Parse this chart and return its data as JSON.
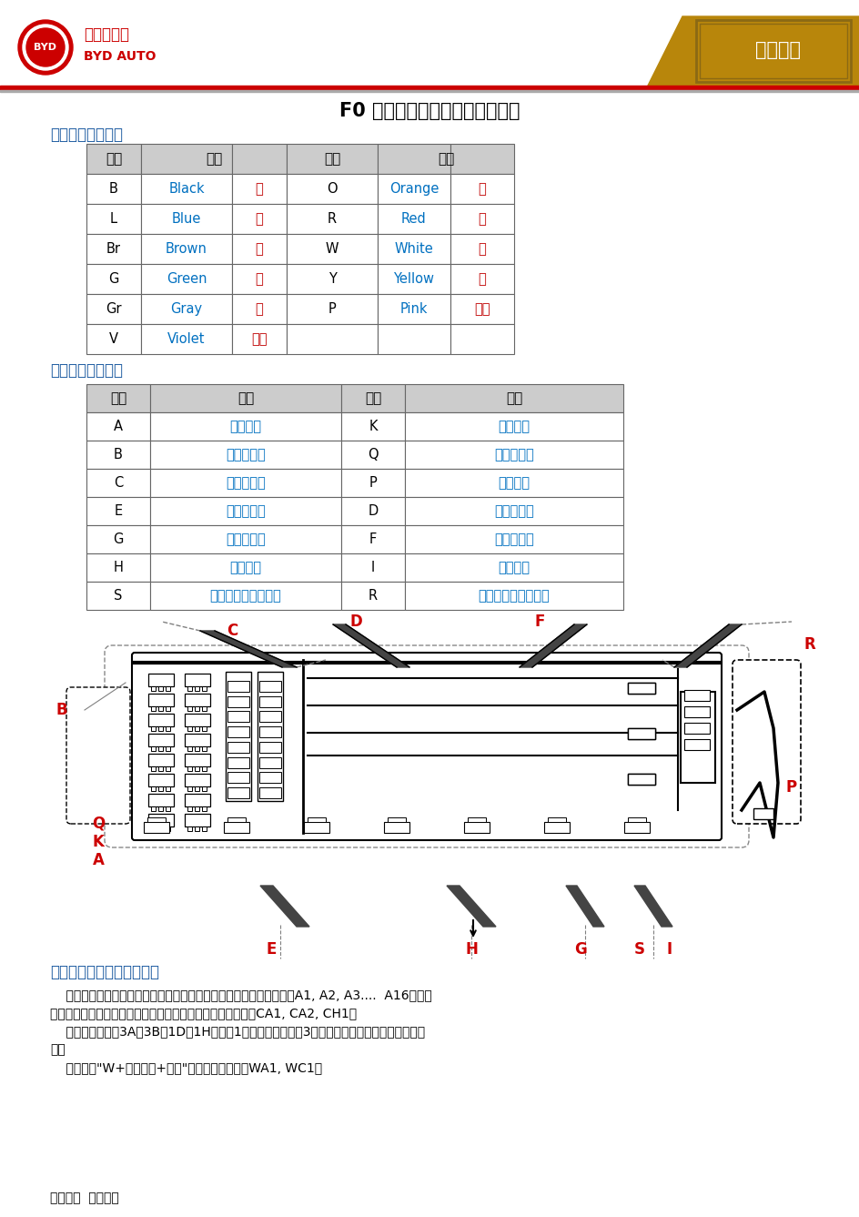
{
  "title": "F0 线束、连接器、搭铁命名规则",
  "header_category": "电气电子",
  "section1_title": "一、线束颜色代号",
  "section2_title": "二、线束名称代号",
  "section3_title": "三、连接器、搭铁命名规则",
  "color_table_rows": [
    [
      "B",
      "Black",
      "黑",
      "O",
      "Orange",
      "橙"
    ],
    [
      "L",
      "Blue",
      "蓝",
      "R",
      "Red",
      "红"
    ],
    [
      "Br",
      "Brown",
      "棕",
      "W",
      "White",
      "白"
    ],
    [
      "G",
      "Green",
      "绿",
      "Y",
      "Yellow",
      "黄"
    ],
    [
      "Gr",
      "Gray",
      "灰",
      "P",
      "Pink",
      "粉红"
    ],
    [
      "V",
      "Violet",
      "紫色",
      "",
      "",
      ""
    ]
  ],
  "harness_table_rows": [
    [
      "A",
      "前舱线束",
      "K",
      "负极线束"
    ],
    [
      "B",
      "发动机线束",
      "Q",
      "配电盒小线"
    ],
    [
      "C",
      "仪表板线束",
      "P",
      "背门线束"
    ],
    [
      "E",
      "左前门线束",
      "D",
      "右前门线束"
    ],
    [
      "G",
      "左后门线束",
      "F",
      "右后门线束"
    ],
    [
      "H",
      "地板线束",
      "I",
      "顶棚线束"
    ],
    [
      "S",
      "左后轮速传感器线束",
      "R",
      "右后轮速传感器线束"
    ]
  ],
  "section3_para1_line1": "    对于连接器，按照阿拉伯数字对每条线束上的连接器进行排序。例如A1, A2, A3....  A16。对互",
  "section3_para1_line2": "连连接器采取用不同线束字母代码组合后加数字的形式。例如CA1, CA2, CH1。",
  "section3_para2_line1": "    在特殊连接器如3A、3B、1D、1H当中，1表示前舱配电盒，3表示仪表配电盒，后边的字母表序",
  "section3_para2_line2": "号。",
  "section3_para3": "    搭铁使用\"W+线束代码+数字\"的形式表示，例如WA1, WC1。",
  "footer_text": "内部资料  严禁外传",
  "bg_color": "#FFFFFF",
  "red": "#CC0000",
  "gold": "#B8860B",
  "blue_section": "#1B5AA0",
  "border": "#666666",
  "blue_en": "#0070C0",
  "red_cn": "#C00000"
}
